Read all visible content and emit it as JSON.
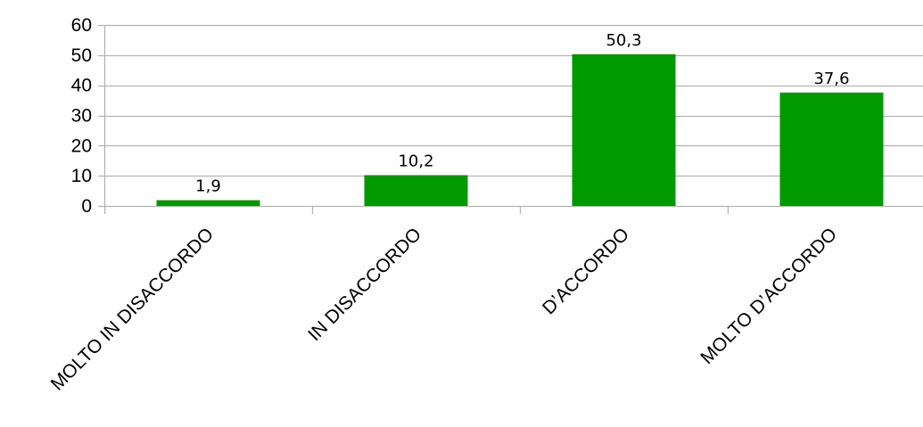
{
  "chart_data": {
    "type": "bar",
    "title": "",
    "xlabel": "",
    "ylabel": "",
    "categories": [
      "MOLTO IN DISACCORDO",
      "IN DISACCORDO",
      "D’ACCORDO",
      "MOLTO D’ACCORDO"
    ],
    "values": [
      1.9,
      10.2,
      50.3,
      37.6
    ],
    "data_labels": [
      "1,9",
      "10,2",
      "50,3",
      "37,6"
    ],
    "ylim": [
      0,
      60
    ],
    "y_ticks": [
      0,
      10,
      20,
      30,
      40,
      50,
      60
    ],
    "y_tick_labels": [
      "0",
      "10",
      "20",
      "30",
      "40",
      "50",
      "60"
    ],
    "grid": true,
    "legend": "none",
    "colors": {
      "bar": "#009900",
      "grid": "#b3b3b3",
      "axis": "#b3b3b3",
      "text": "#000000"
    }
  }
}
